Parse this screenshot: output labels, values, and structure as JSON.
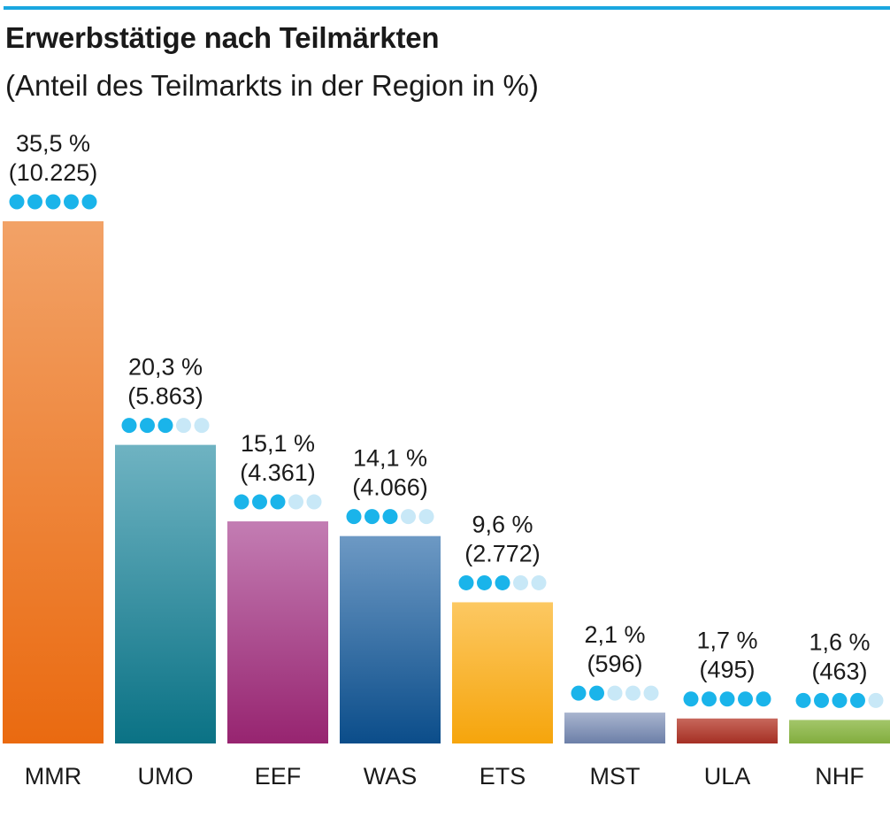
{
  "title": "Erwerbstätige nach Teilmärkten",
  "subtitle": "(Anteil des Teilmarkts in der Region in %)",
  "colors": {
    "rule": "#1aa7e0",
    "dot_filled": "#1ab4ea",
    "dot_empty": "#c8e8f7"
  },
  "chart_data": {
    "type": "bar",
    "title": "Erwerbstätige nach Teilmärkten",
    "subtitle": "(Anteil des Teilmarkts in der Region in %)",
    "categories": [
      "MMR",
      "UMO",
      "EEF",
      "WAS",
      "ETS",
      "MST",
      "ULA",
      "NHF"
    ],
    "values": [
      35.5,
      20.3,
      15.1,
      14.1,
      9.6,
      2.1,
      1.7,
      1.6
    ],
    "percent_labels": [
      "35,5 %",
      "20,3 %",
      "15,1 %",
      "14,1 %",
      "9,6 %",
      "2,1 %",
      "1,7 %",
      "1,6 %"
    ],
    "count_labels": [
      "(10.225)",
      "(5.863)",
      "(4.361)",
      "(4.066)",
      "(2.772)",
      "(596)",
      "(495)",
      "(463)"
    ],
    "rating_dots_filled": [
      5,
      3,
      3,
      3,
      3,
      2,
      5,
      4
    ],
    "rating_dots_total": 5,
    "bar_colors": [
      [
        "#f2a267",
        "#ea6a10"
      ],
      [
        "#6fb3c2",
        "#0a7285"
      ],
      [
        "#c37db3",
        "#972470"
      ],
      [
        "#6d99c4",
        "#0b4d8a"
      ],
      [
        "#fcc862",
        "#f6a50c"
      ],
      [
        "#a9b5cf",
        "#6c7fa8"
      ],
      [
        "#c7685b",
        "#a52f24"
      ],
      [
        "#a3c66a",
        "#82ad3e"
      ]
    ],
    "xlabel": "",
    "ylabel": "",
    "ylim": [
      0,
      35.5
    ],
    "grid": false,
    "legend": "none"
  }
}
